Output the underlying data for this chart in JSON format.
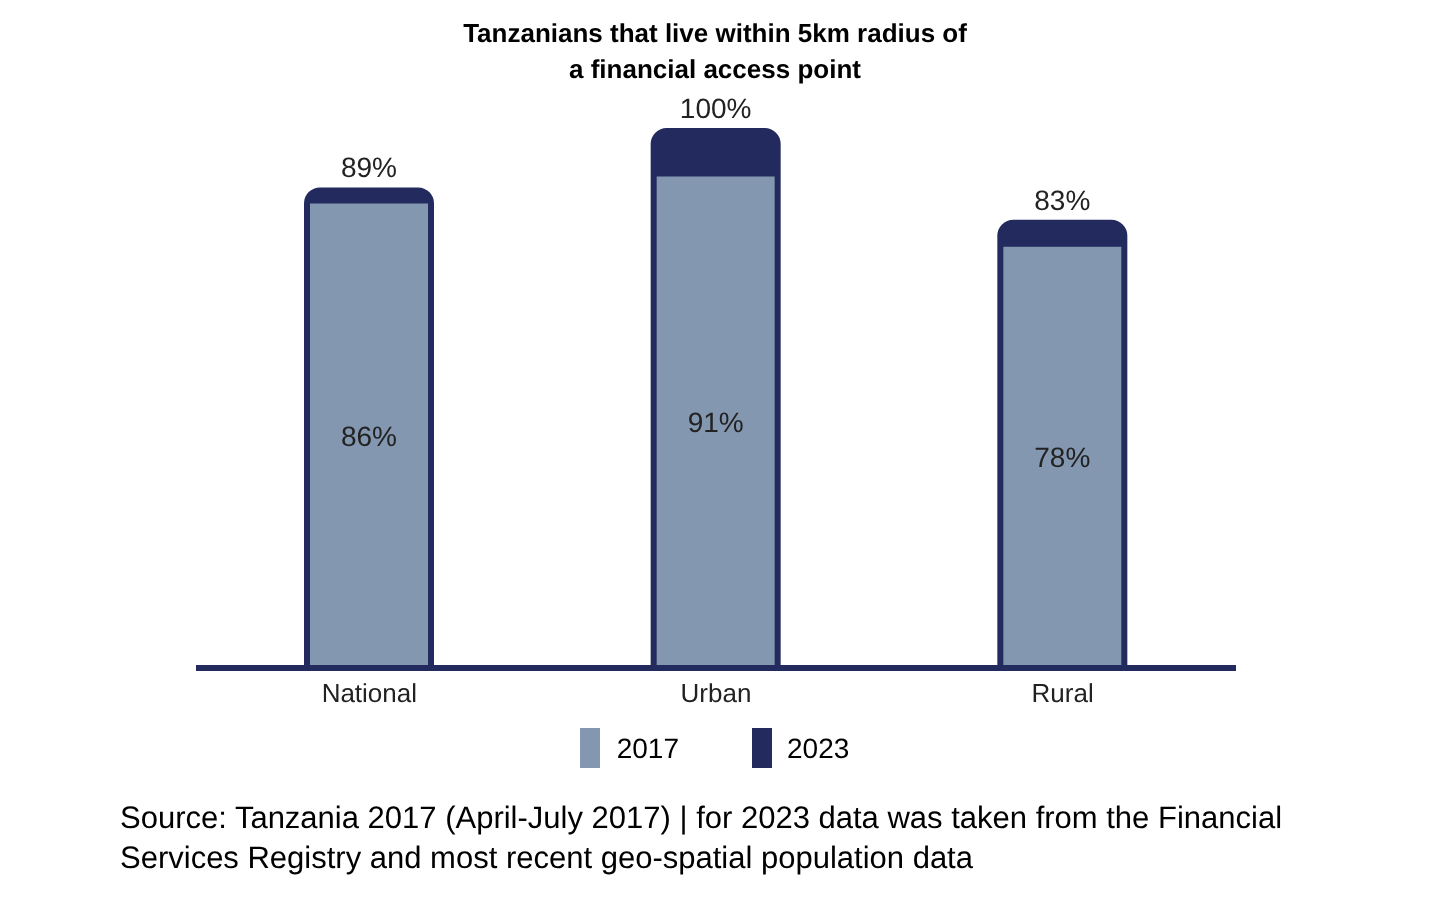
{
  "chart_data": {
    "type": "bar",
    "title": "Tanzanians that live within 5km radius of a financial access point",
    "categories": [
      "National",
      "Urban",
      "Rural"
    ],
    "series": [
      {
        "name": "2017",
        "color": "#8497b0",
        "values": [
          86,
          91,
          78
        ],
        "value_labels": [
          "86%",
          "91%",
          "78%"
        ]
      },
      {
        "name": "2023",
        "color": "#222a5e",
        "values": [
          89,
          100,
          83
        ],
        "value_labels": [
          "89%",
          "100%",
          "83%"
        ]
      }
    ],
    "data_labels": true,
    "legend": "bottom",
    "grid": false,
    "annotations": [
      "Source: Tanzania 2017 (April-July 2017) | for 2023 data was taken from the Financial Services Registry and most recent geo-spatial population data"
    ]
  }
}
